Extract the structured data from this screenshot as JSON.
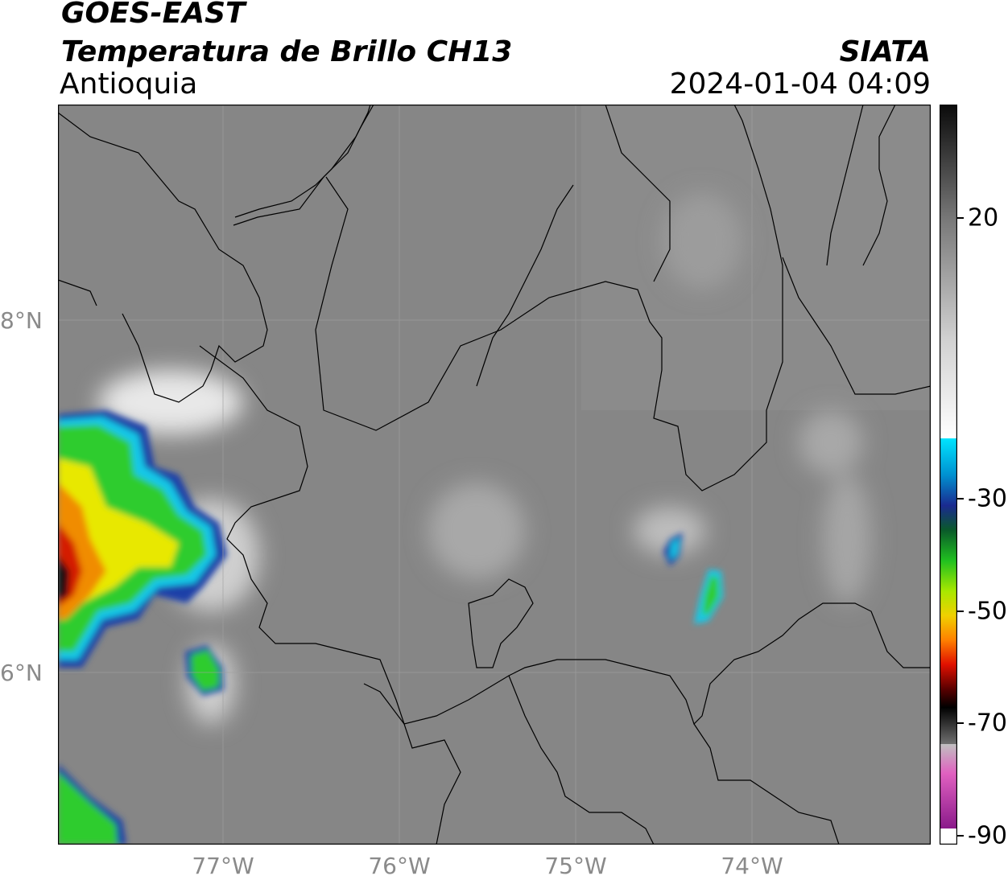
{
  "header": {
    "satellite": "GOES-EAST",
    "product": "Temperatura de Brillo CH13",
    "region": "Antioquia",
    "agency": "SIATA",
    "datetime": "2024-01-04 04:09"
  },
  "axes": {
    "lat_labels": [
      "8°N",
      "6°N"
    ],
    "lon_labels": [
      "77°W",
      "76°W",
      "75°W",
      "74°W"
    ]
  },
  "colorbar": {
    "tick_labels": [
      "20",
      "-30",
      "-50",
      "-70",
      "-90"
    ]
  },
  "colors": {
    "background_gray": "#8a8a8a",
    "cold_cyan": "#19c8e8",
    "cold_green": "#2ecc2e",
    "cold_yellow": "#e8e800",
    "cold_red": "#d41a00",
    "cold_black": "#101010",
    "cold_magenta": "#a020a0"
  }
}
